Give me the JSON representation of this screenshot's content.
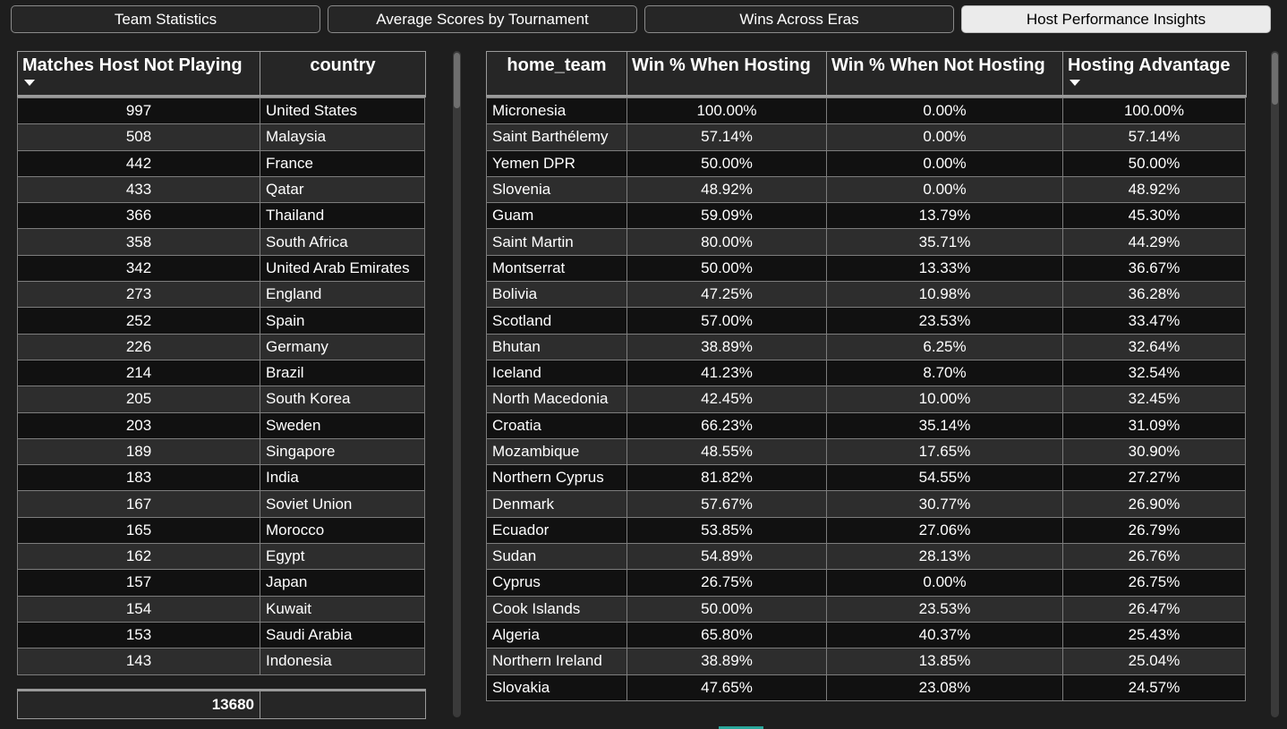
{
  "tabs": [
    {
      "label": "Team Statistics",
      "active": false
    },
    {
      "label": "Average Scores by Tournament",
      "active": false
    },
    {
      "label": "Wins Across Eras",
      "active": false
    },
    {
      "label": "Host Performance Insights",
      "active": true
    }
  ],
  "left_table": {
    "columns": [
      "Matches Host Not Playing",
      "country"
    ],
    "sort": {
      "column": "Matches Host Not Playing",
      "direction": "descending"
    },
    "rows": [
      [
        "997",
        "United States"
      ],
      [
        "508",
        "Malaysia"
      ],
      [
        "442",
        "France"
      ],
      [
        "433",
        "Qatar"
      ],
      [
        "366",
        "Thailand"
      ],
      [
        "358",
        "South Africa"
      ],
      [
        "342",
        "United Arab Emirates"
      ],
      [
        "273",
        "England"
      ],
      [
        "252",
        "Spain"
      ],
      [
        "226",
        "Germany"
      ],
      [
        "214",
        "Brazil"
      ],
      [
        "205",
        "South Korea"
      ],
      [
        "203",
        "Sweden"
      ],
      [
        "189",
        "Singapore"
      ],
      [
        "183",
        "India"
      ],
      [
        "167",
        "Soviet Union"
      ],
      [
        "165",
        "Morocco"
      ],
      [
        "162",
        "Egypt"
      ],
      [
        "157",
        "Japan"
      ],
      [
        "154",
        "Kuwait"
      ],
      [
        "153",
        "Saudi Arabia"
      ],
      [
        "143",
        "Indonesia"
      ]
    ],
    "footer": [
      "13680",
      ""
    ]
  },
  "right_table": {
    "columns": [
      "home_team",
      "Win % When Hosting",
      "Win % When Not Hosting",
      "Hosting Advantage"
    ],
    "sort": {
      "column": "Hosting Advantage",
      "direction": "descending"
    },
    "rows": [
      [
        "Micronesia",
        "100.00%",
        "0.00%",
        "100.00%"
      ],
      [
        "Saint Barthélemy",
        "57.14%",
        "0.00%",
        "57.14%"
      ],
      [
        "Yemen DPR",
        "50.00%",
        "0.00%",
        "50.00%"
      ],
      [
        "Slovenia",
        "48.92%",
        "0.00%",
        "48.92%"
      ],
      [
        "Guam",
        "59.09%",
        "13.79%",
        "45.30%"
      ],
      [
        "Saint Martin",
        "80.00%",
        "35.71%",
        "44.29%"
      ],
      [
        "Montserrat",
        "50.00%",
        "13.33%",
        "36.67%"
      ],
      [
        "Bolivia",
        "47.25%",
        "10.98%",
        "36.28%"
      ],
      [
        "Scotland",
        "57.00%",
        "23.53%",
        "33.47%"
      ],
      [
        "Bhutan",
        "38.89%",
        "6.25%",
        "32.64%"
      ],
      [
        "Iceland",
        "41.23%",
        "8.70%",
        "32.54%"
      ],
      [
        "North Macedonia",
        "42.45%",
        "10.00%",
        "32.45%"
      ],
      [
        "Croatia",
        "66.23%",
        "35.14%",
        "31.09%"
      ],
      [
        "Mozambique",
        "48.55%",
        "17.65%",
        "30.90%"
      ],
      [
        "Northern Cyprus",
        "81.82%",
        "54.55%",
        "27.27%"
      ],
      [
        "Denmark",
        "57.67%",
        "30.77%",
        "26.90%"
      ],
      [
        "Ecuador",
        "53.85%",
        "27.06%",
        "26.79%"
      ],
      [
        "Sudan",
        "54.89%",
        "28.13%",
        "26.76%"
      ],
      [
        "Cyprus",
        "26.75%",
        "0.00%",
        "26.75%"
      ],
      [
        "Cook Islands",
        "50.00%",
        "23.53%",
        "26.47%"
      ],
      [
        "Algeria",
        "65.80%",
        "40.37%",
        "25.43%"
      ],
      [
        "Northern Ireland",
        "38.89%",
        "13.85%",
        "25.04%"
      ],
      [
        "Slovakia",
        "47.65%",
        "23.08%",
        "24.57%"
      ]
    ]
  },
  "colors": {
    "background": "#1e1e1e",
    "row_dark": "#111111",
    "row_light": "#2d2d2d",
    "border": "#7d7d7d",
    "active_tab": "#ebebeb",
    "accent": "#2aa69a"
  }
}
